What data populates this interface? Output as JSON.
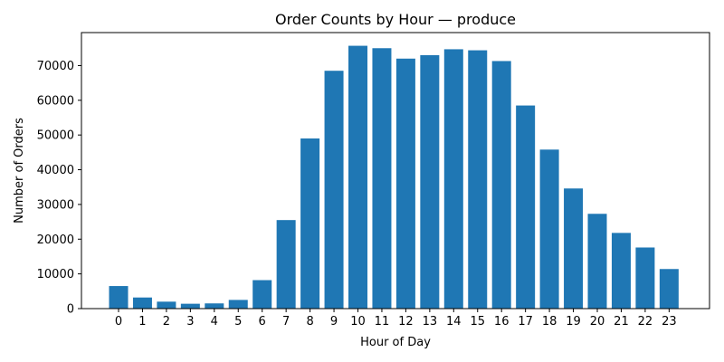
{
  "chart_data": {
    "type": "bar",
    "title": "Order Counts by Hour — produce",
    "xlabel": "Hour of Day",
    "ylabel": "Number of Orders",
    "categories": [
      "0",
      "1",
      "2",
      "3",
      "4",
      "5",
      "6",
      "7",
      "8",
      "9",
      "10",
      "11",
      "12",
      "13",
      "14",
      "15",
      "16",
      "17",
      "18",
      "19",
      "20",
      "21",
      "22",
      "23"
    ],
    "values": [
      6500,
      3200,
      2000,
      1400,
      1500,
      2500,
      8200,
      25500,
      49000,
      68500,
      75700,
      75000,
      72000,
      73000,
      74700,
      74400,
      71300,
      58500,
      45800,
      34600,
      27300,
      21800,
      17600,
      11400
    ],
    "ylim": [
      0,
      79500
    ],
    "yticks": [
      0,
      10000,
      20000,
      30000,
      40000,
      50000,
      60000,
      70000
    ],
    "ytick_labels": [
      "0",
      "10000",
      "20000",
      "30000",
      "40000",
      "50000",
      "60000",
      "70000"
    ],
    "bar_color": "#1f77b4",
    "grid": false,
    "legend": "none"
  }
}
